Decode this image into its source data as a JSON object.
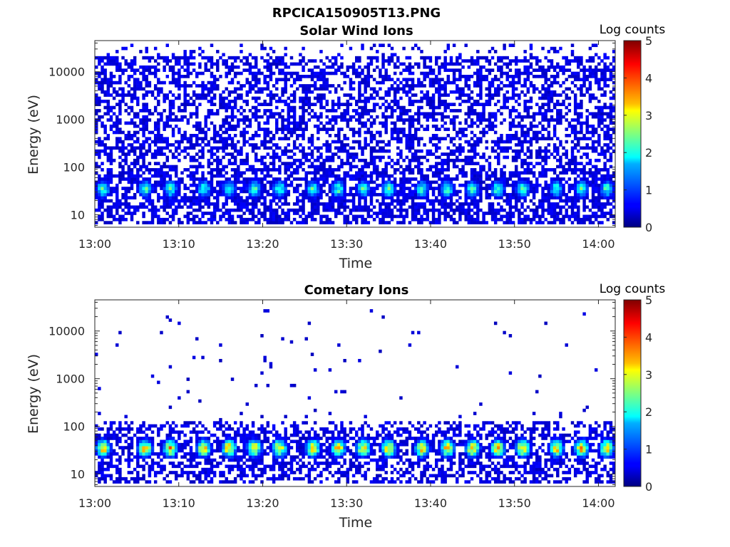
{
  "figure": {
    "title": "RPCICA150905T13.PNG"
  },
  "chart_data": [
    {
      "type": "heatmap",
      "title": "Solar Wind Ions",
      "xlabel": "Time",
      "ylabel": "Energy (eV)",
      "x_range": [
        "13:00",
        "14:02"
      ],
      "x_ticks": [
        "13:00",
        "13:10",
        "13:20",
        "13:30",
        "13:40",
        "13:50",
        "14:00"
      ],
      "y_scale": "log",
      "y_range": [
        5.5,
        45000
      ],
      "y_ticks": [
        "10",
        "100",
        "1000",
        "10000"
      ],
      "colorbar": {
        "label": "Log counts",
        "min": 0,
        "max": 5,
        "ticks": [
          "0",
          "1",
          "2",
          "3",
          "4",
          "5"
        ],
        "colormap": "jet"
      },
      "pattern": {
        "background_level": 0.3,
        "background_energy_range": [
          6,
          40000
        ],
        "peak_energy": 35,
        "peak_level": 2.3,
        "pulse_period_min": 3.4,
        "pulse_times": [
          "13:01",
          "13:06",
          "13:09",
          "13:13",
          "13:16",
          "13:19",
          "13:22",
          "13:26",
          "13:29",
          "13:32",
          "13:35",
          "13:39",
          "13:42",
          "13:45",
          "13:48",
          "13:51",
          "13:55",
          "13:58",
          "14:01"
        ]
      }
    },
    {
      "type": "heatmap",
      "title": "Cometary Ions",
      "xlabel": "Time",
      "ylabel": "Energy (eV)",
      "x_range": [
        "13:00",
        "14:02"
      ],
      "x_ticks": [
        "13:00",
        "13:10",
        "13:20",
        "13:30",
        "13:40",
        "13:50",
        "14:00"
      ],
      "y_scale": "log",
      "y_range": [
        5.5,
        45000
      ],
      "y_ticks": [
        "10",
        "100",
        "1000",
        "10000"
      ],
      "colorbar": {
        "label": "Log counts",
        "min": 0,
        "max": 5,
        "ticks": [
          "0",
          "1",
          "2",
          "3",
          "4",
          "5"
        ],
        "colormap": "jet"
      },
      "pattern": {
        "background_level": 0.3,
        "background_energy_range": [
          6,
          120
        ],
        "sparse_energy_range": [
          120,
          30000
        ],
        "peak_energy": 35,
        "peak_level": 3.6,
        "pulse_period_min": 3.4,
        "pulse_times": [
          "13:01",
          "13:06",
          "13:09",
          "13:13",
          "13:16",
          "13:19",
          "13:22",
          "13:26",
          "13:29",
          "13:32",
          "13:35",
          "13:39",
          "13:42",
          "13:45",
          "13:48",
          "13:51",
          "13:55",
          "13:58",
          "14:01"
        ]
      }
    }
  ]
}
